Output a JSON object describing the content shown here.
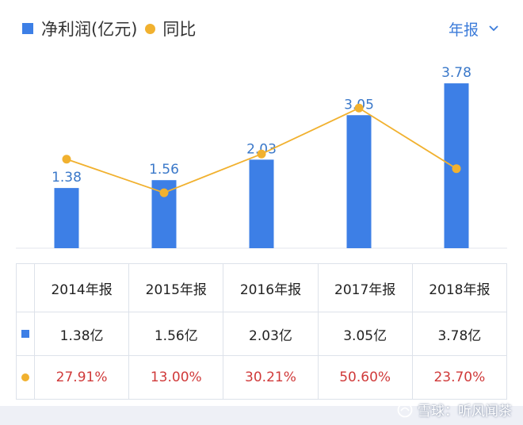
{
  "legend": {
    "bar_label": "净利润(亿元)",
    "line_label": "同比"
  },
  "period_selector": {
    "label": "年报",
    "icon": "chevron-down-icon"
  },
  "colors": {
    "bar": "#3d7fe6",
    "line": "#f1b12f",
    "value_label": "#3a78c9",
    "negative_text": "#d03a3a"
  },
  "chart_data": {
    "type": "bar",
    "categories": [
      "2014年报",
      "2015年报",
      "2016年报",
      "2017年报",
      "2018年报"
    ],
    "series": [
      {
        "name": "净利润(亿元)",
        "type": "bar",
        "values": [
          1.38,
          1.56,
          2.03,
          3.05,
          3.78
        ],
        "labels": [
          "1.38",
          "1.56",
          "2.03",
          "3.05",
          "3.78"
        ]
      },
      {
        "name": "同比",
        "type": "line",
        "values": [
          27.91,
          13.0,
          30.21,
          50.6,
          23.7
        ]
      }
    ],
    "legend_position": "top-left",
    "grid": false
  },
  "table": {
    "headers": [
      "2014年报",
      "2015年报",
      "2016年报",
      "2017年报",
      "2018年报"
    ],
    "profit_row": [
      "1.38亿",
      "1.56亿",
      "2.03亿",
      "3.05亿",
      "3.78亿"
    ],
    "yoy_row": [
      "27.91%",
      "13.00%",
      "30.21%",
      "50.60%",
      "23.70%"
    ]
  },
  "watermark": {
    "text": "雪球：听风闻茶"
  }
}
